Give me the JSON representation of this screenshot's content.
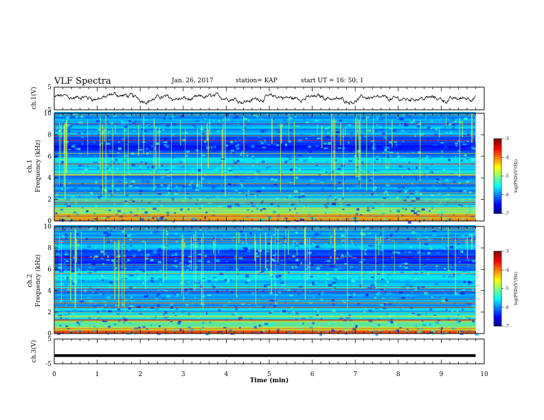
{
  "header": {
    "title": "VLF Spectra",
    "date": "Jan. 26, 2017",
    "station": "station= KAP",
    "start_ut": "start  UT =   16: 50: 1"
  },
  "chart_data": [
    {
      "type": "line",
      "name": "ch1-waveform",
      "ylabel": "ch.1(V)",
      "ylim": [
        -5,
        5
      ],
      "yticks": [
        "5",
        "-5"
      ],
      "xlim": [
        0,
        10
      ],
      "note": "noisy waveform oscillating near 0 V across 0–9.8 min"
    },
    {
      "type": "heatmap",
      "name": "ch1-spectrogram",
      "ylabel": "ch.1\nFrequency (kHz)",
      "ylim": [
        0,
        10
      ],
      "yticks": [
        "0",
        "2",
        "4",
        "6",
        "8",
        "10"
      ],
      "xlim": [
        0,
        9.8
      ],
      "colorbar": {
        "label": "log(PSD)(V²/Hz)",
        "range": [
          -7,
          -3
        ],
        "ticks": [
          "-3",
          "-4",
          "-5",
          "-6",
          "-7"
        ]
      }
    },
    {
      "type": "heatmap",
      "name": "ch2-spectrogram",
      "ylabel": "ch.2\nFrequency (kHz)",
      "ylim": [
        0,
        10
      ],
      "yticks": [
        "0",
        "2",
        "4",
        "6",
        "8",
        "10"
      ],
      "xlim": [
        0,
        9.8
      ],
      "colorbar": {
        "label": "log(PSD)(V²/Hz)",
        "range": [
          -7,
          -3
        ],
        "ticks": [
          "-3",
          "-4",
          "-5",
          "-6",
          "-7"
        ]
      }
    },
    {
      "type": "line",
      "name": "ch3-waveform",
      "ylabel": "ch.3(V)",
      "ylim": [
        -5,
        5
      ],
      "yticks": [
        "5",
        "-5"
      ],
      "xlim": [
        0,
        10
      ],
      "note": "flat thick trace at about -1.7 V across 0–9.8 min"
    }
  ],
  "xaxis": {
    "label": "Time (min)",
    "ticks": [
      "0",
      "1",
      "2",
      "3",
      "4",
      "5",
      "6",
      "7",
      "8",
      "9",
      "10"
    ]
  }
}
